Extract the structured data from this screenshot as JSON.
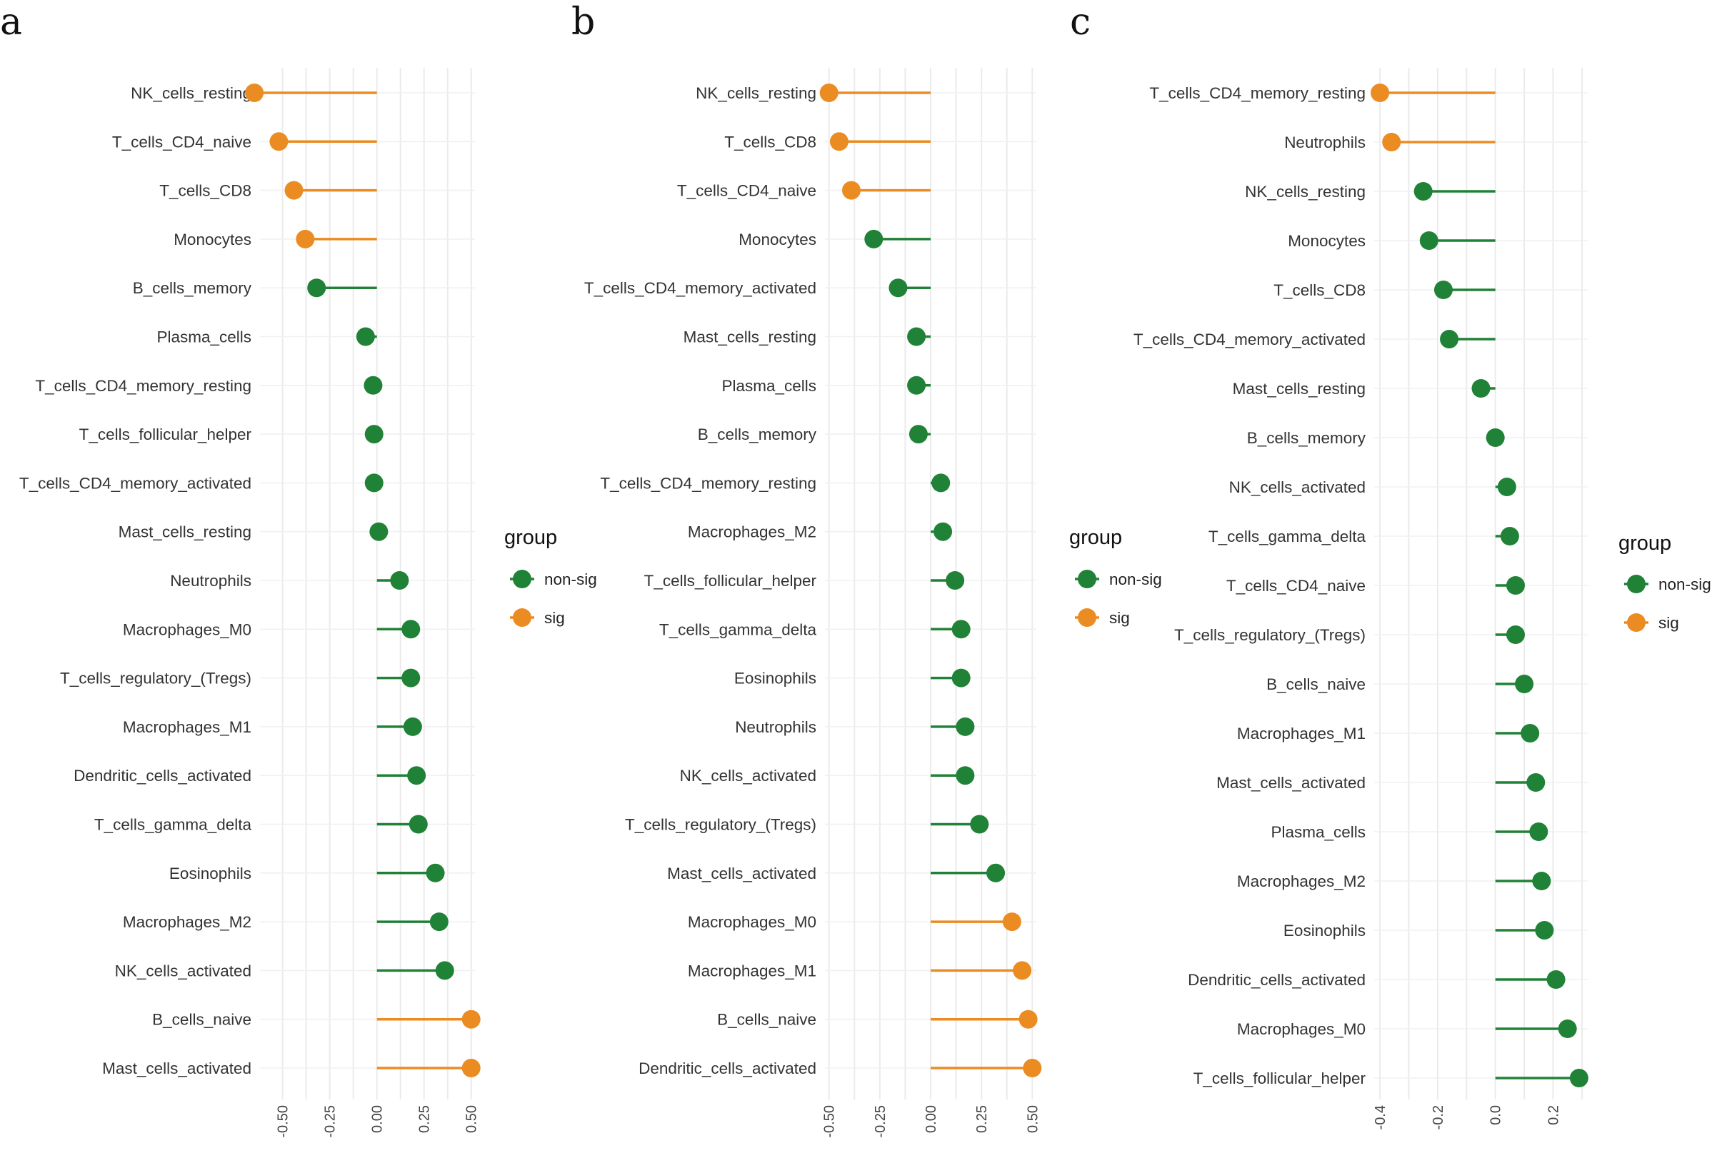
{
  "colors": {
    "non-sig": "#208237",
    "sig": "#eb8c23"
  },
  "chart_data": [
    {
      "type": "lollipop",
      "panel": "a",
      "xlabel": "",
      "ylabel": "",
      "xlim": [
        -0.62,
        0.52
      ],
      "xticks": [
        -0.5,
        -0.25,
        0.0,
        0.25,
        0.5
      ],
      "xtick_labels": [
        "-0.50",
        "-0.25",
        "0.00",
        "0.25",
        "0.50"
      ],
      "legend": {
        "title": "group",
        "entries": [
          "non-sig",
          "sig"
        ],
        "position": "right"
      },
      "categories": [
        "NK_cells_resting",
        "T_cells_CD4_naive",
        "T_cells_CD8",
        "Monocytes",
        "B_cells_memory",
        "Plasma_cells",
        "T_cells_CD4_memory_resting",
        "T_cells_follicular_helper",
        "T_cells_CD4_memory_activated",
        "Mast_cells_resting",
        "Neutrophils",
        "Macrophages_M0",
        "T_cells_regulatory_(Tregs)",
        "Macrophages_M1",
        "Dendritic_cells_activated",
        "T_cells_gamma_delta",
        "Eosinophils",
        "Macrophages_M2",
        "NK_cells_activated",
        "B_cells_naive",
        "Mast_cells_activated"
      ],
      "values": [
        -0.65,
        -0.52,
        -0.44,
        -0.38,
        -0.32,
        -0.06,
        -0.02,
        -0.015,
        -0.015,
        0.01,
        0.12,
        0.18,
        0.18,
        0.19,
        0.21,
        0.22,
        0.31,
        0.33,
        0.36,
        0.5,
        0.5
      ],
      "groups": [
        "sig",
        "sig",
        "sig",
        "sig",
        "non-sig",
        "non-sig",
        "non-sig",
        "non-sig",
        "non-sig",
        "non-sig",
        "non-sig",
        "non-sig",
        "non-sig",
        "non-sig",
        "non-sig",
        "non-sig",
        "non-sig",
        "non-sig",
        "non-sig",
        "sig",
        "sig"
      ]
    },
    {
      "type": "lollipop",
      "panel": "b",
      "xlabel": "",
      "ylabel": "",
      "xlim": [
        -0.52,
        0.52
      ],
      "xticks": [
        -0.5,
        -0.25,
        0.0,
        0.25,
        0.5
      ],
      "xtick_labels": [
        "-0.50",
        "-0.25",
        "0.00",
        "0.25",
        "0.50"
      ],
      "legend": {
        "title": "group",
        "entries": [
          "non-sig",
          "sig"
        ],
        "position": "right"
      },
      "categories": [
        "NK_cells_resting",
        "T_cells_CD8",
        "T_cells_CD4_naive",
        "Monocytes",
        "T_cells_CD4_memory_activated",
        "Mast_cells_resting",
        "Plasma_cells",
        "B_cells_memory",
        "T_cells_CD4_memory_resting",
        "Macrophages_M2",
        "T_cells_follicular_helper",
        "T_cells_gamma_delta",
        "Eosinophils",
        "Neutrophils",
        "NK_cells_activated",
        "T_cells_regulatory_(Tregs)",
        "Mast_cells_activated",
        "Macrophages_M0",
        "Macrophages_M1",
        "B_cells_naive",
        "Dendritic_cells_activated"
      ],
      "values": [
        -0.5,
        -0.45,
        -0.39,
        -0.28,
        -0.16,
        -0.07,
        -0.07,
        -0.06,
        0.05,
        0.06,
        0.12,
        0.15,
        0.15,
        0.17,
        0.17,
        0.24,
        0.32,
        0.4,
        0.45,
        0.48,
        0.5
      ],
      "groups": [
        "sig",
        "sig",
        "sig",
        "non-sig",
        "non-sig",
        "non-sig",
        "non-sig",
        "non-sig",
        "non-sig",
        "non-sig",
        "non-sig",
        "non-sig",
        "non-sig",
        "non-sig",
        "non-sig",
        "non-sig",
        "non-sig",
        "sig",
        "sig",
        "sig",
        "sig"
      ]
    },
    {
      "type": "lollipop",
      "panel": "c",
      "xlabel": "",
      "ylabel": "",
      "xlim": [
        -0.42,
        0.32
      ],
      "xticks": [
        -0.4,
        -0.2,
        0.0,
        0.2
      ],
      "xtick_labels": [
        "-0.4",
        "-0.2",
        "0.0",
        "0.2"
      ],
      "legend": {
        "title": "group",
        "entries": [
          "non-sig",
          "sig"
        ],
        "position": "right"
      },
      "categories": [
        "T_cells_CD4_memory_resting",
        "Neutrophils",
        "NK_cells_resting",
        "Monocytes",
        "T_cells_CD8",
        "T_cells_CD4_memory_activated",
        "Mast_cells_resting",
        "B_cells_memory",
        "NK_cells_activated",
        "T_cells_gamma_delta",
        "T_cells_CD4_naive",
        "T_cells_regulatory_(Tregs)",
        "B_cells_naive",
        "Macrophages_M1",
        "Mast_cells_activated",
        "Plasma_cells",
        "Macrophages_M2",
        "Eosinophils",
        "Dendritic_cells_activated",
        "Macrophages_M0",
        "T_cells_follicular_helper"
      ],
      "values": [
        -0.4,
        -0.36,
        -0.25,
        -0.23,
        -0.18,
        -0.16,
        -0.05,
        0.0,
        0.04,
        0.05,
        0.07,
        0.07,
        0.1,
        0.12,
        0.14,
        0.15,
        0.16,
        0.17,
        0.21,
        0.25,
        0.29
      ],
      "groups": [
        "sig",
        "sig",
        "non-sig",
        "non-sig",
        "non-sig",
        "non-sig",
        "non-sig",
        "non-sig",
        "non-sig",
        "non-sig",
        "non-sig",
        "non-sig",
        "non-sig",
        "non-sig",
        "non-sig",
        "non-sig",
        "non-sig",
        "non-sig",
        "non-sig",
        "non-sig",
        "non-sig"
      ]
    }
  ]
}
